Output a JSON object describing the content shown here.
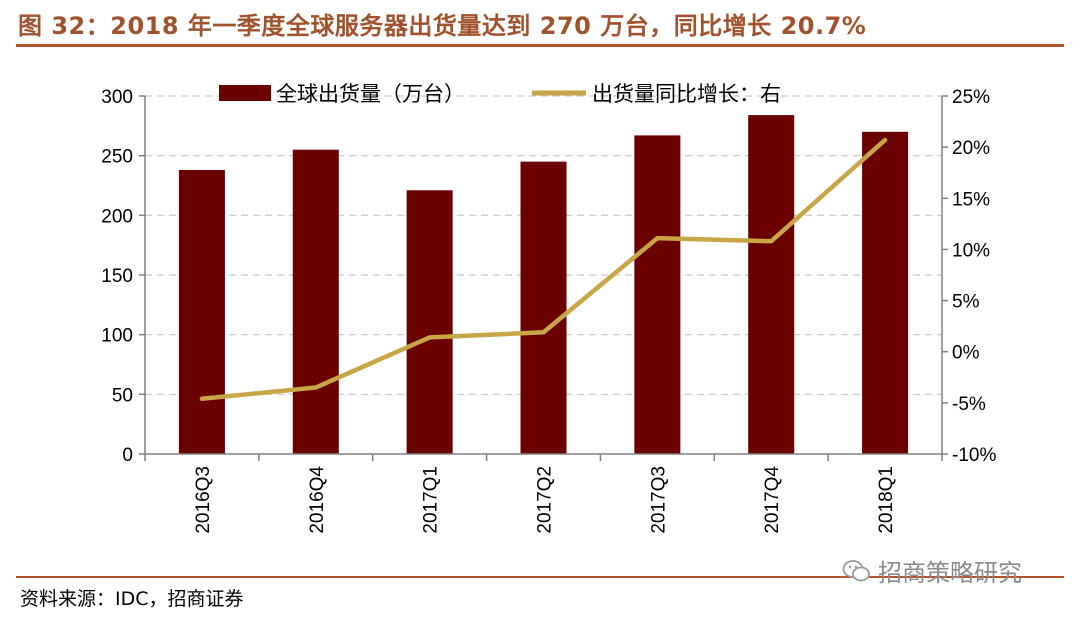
{
  "header": {
    "title": "图 32：2018 年一季度全球服务器出货量达到 270 万台，同比增长 20.7%"
  },
  "footer": {
    "source": "资料来源：IDC，招商证券",
    "watermark": "招商策略研究"
  },
  "icons": {
    "watermark": "wechat-icon"
  },
  "chart_data": {
    "type": "bar",
    "categories": [
      "2016Q3",
      "2016Q4",
      "2017Q1",
      "2017Q2",
      "2017Q3",
      "2017Q4",
      "2018Q1"
    ],
    "series": [
      {
        "name": "全球出货量（万台）",
        "type": "bar",
        "axis": "left",
        "values": [
          238,
          255,
          221,
          245,
          267,
          284,
          270
        ],
        "color": "#6b0000"
      },
      {
        "name": "出货量同比增长：右",
        "type": "line",
        "axis": "right",
        "values": [
          -4.6,
          -3.5,
          1.4,
          1.9,
          11.1,
          10.8,
          20.7
        ],
        "color": "#c8a547"
      }
    ],
    "y_left": {
      "ylim": [
        0,
        300
      ],
      "ticks": [
        0,
        50,
        100,
        150,
        200,
        250,
        300
      ]
    },
    "y_right": {
      "ylim": [
        -10,
        25
      ],
      "ticks": [
        -10,
        -5,
        0,
        5,
        10,
        15,
        20,
        25
      ],
      "format": "percent"
    },
    "grid": "horizontal-dashed",
    "legend": "top-center",
    "xlabel": "",
    "ylabel": ""
  }
}
